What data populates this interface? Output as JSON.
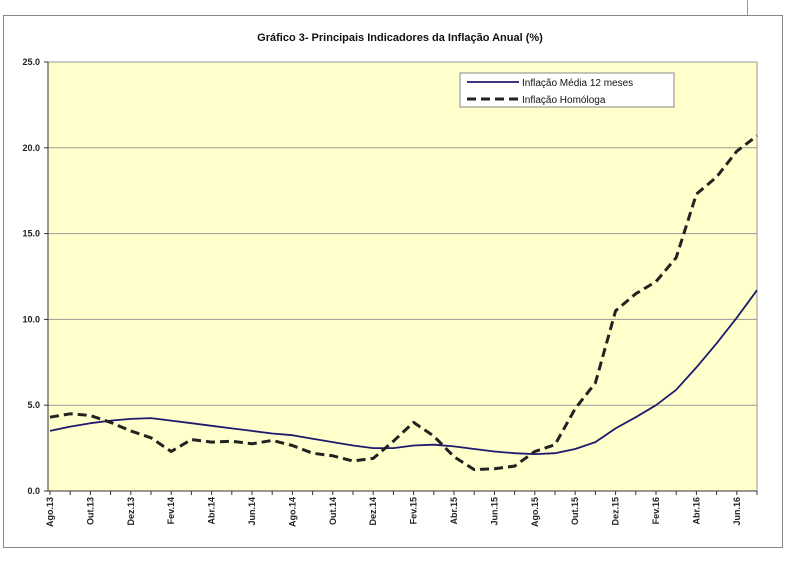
{
  "chart_data": {
    "type": "line",
    "title": "Gráfico 3- Principais Indicadores da Inflação Anual (%)",
    "xlabel": "",
    "ylabel": "",
    "ylim": [
      0,
      25
    ],
    "yticks": [
      "0.0",
      "5.0",
      "10.0",
      "15.0",
      "20.0",
      "25.0"
    ],
    "grid": "horizontal",
    "legend_position": "top-right",
    "background_color": "#FFFFCC",
    "x": [
      "Ago.13",
      "Set.13",
      "Out.13",
      "Nov.13",
      "Dez.13",
      "Jan.14",
      "Fev.14",
      "Mar.14",
      "Abr.14",
      "Mai.14",
      "Jun.14",
      "Jul.14",
      "Ago.14",
      "Set.14",
      "Out.14",
      "Nov.14",
      "Dez.14",
      "Jan.15",
      "Fev.15",
      "Mar.15",
      "Abr.15",
      "Mai.15",
      "Jun.15",
      "Jul.15",
      "Ago.15",
      "Set.15",
      "Out.15",
      "Nov.15",
      "Dez.15",
      "Jan.16",
      "Fev.16",
      "Mar.16",
      "Abr.16",
      "Mai.16",
      "Jun.16",
      "Jul.16"
    ],
    "xtick_labels": [
      "Ago.13",
      "Out.13",
      "Dez.13",
      "Fev.14",
      "Abr.14",
      "Jun.14",
      "Ago.14",
      "Out.14",
      "Dez.14",
      "Fev.15",
      "Abr.15",
      "Jun.15",
      "Ago.15",
      "Out.15",
      "Dez.15",
      "Fev.16",
      "Abr.16",
      "Jun.16"
    ],
    "series": [
      {
        "name": "Inflação Média 12 meses",
        "color": "#1F1A6E",
        "style": "solid",
        "values": [
          3.5,
          3.75,
          3.95,
          4.1,
          4.2,
          4.25,
          4.1,
          3.95,
          3.8,
          3.65,
          3.5,
          3.35,
          3.25,
          3.05,
          2.85,
          2.65,
          2.5,
          2.5,
          2.65,
          2.7,
          2.6,
          2.45,
          2.3,
          2.2,
          2.15,
          2.2,
          2.45,
          2.85,
          3.65,
          4.3,
          5.0,
          5.9,
          7.2,
          8.6,
          10.1,
          11.7
        ]
      },
      {
        "name": "Inflação Homóloga",
        "color": "#222222",
        "style": "dashed",
        "values": [
          4.3,
          4.5,
          4.4,
          4.0,
          3.5,
          3.1,
          2.3,
          3.0,
          2.85,
          2.9,
          2.75,
          2.95,
          2.65,
          2.2,
          2.05,
          1.75,
          1.9,
          2.9,
          4.0,
          3.2,
          2.0,
          1.25,
          1.3,
          1.45,
          2.3,
          2.7,
          4.8,
          6.3,
          10.5,
          11.5,
          12.2,
          13.6,
          17.3,
          18.3,
          19.8,
          20.7
        ]
      }
    ]
  }
}
